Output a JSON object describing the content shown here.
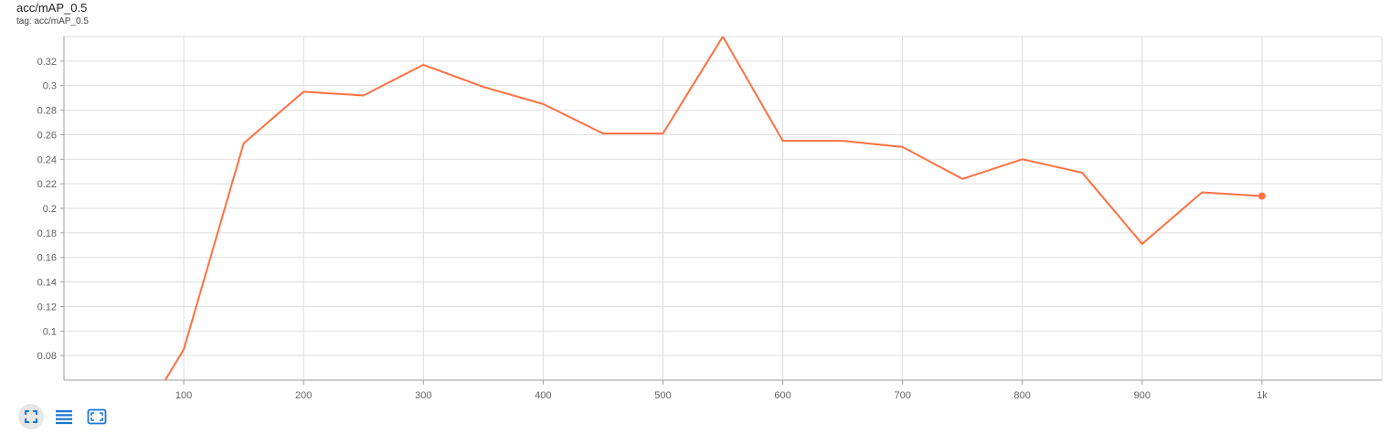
{
  "card": {
    "title": "acc/mAP_0.5",
    "subtitle": "tag: acc/mAP_0.5"
  },
  "toolbar": {
    "buttons": [
      {
        "icon": "fit-domain-icon",
        "active": true
      },
      {
        "icon": "toggle-log-lines-icon",
        "active": false
      },
      {
        "icon": "fullscreen-icon",
        "active": false
      }
    ],
    "accent_color": "#1976d2"
  },
  "chart_data": {
    "type": "line",
    "title": "acc/mAP_0.5",
    "xlabel": "",
    "ylabel": "",
    "xlim": [
      0,
      1100
    ],
    "ylim": [
      0.06,
      0.34
    ],
    "x_ticks": [
      100,
      200,
      300,
      400,
      500,
      600,
      700,
      800,
      900,
      1000
    ],
    "x_tick_labels": [
      "100",
      "200",
      "300",
      "400",
      "500",
      "600",
      "700",
      "800",
      "900",
      "1k"
    ],
    "y_ticks": [
      0.08,
      0.1,
      0.12,
      0.14,
      0.16,
      0.18,
      0.2,
      0.22,
      0.24,
      0.26,
      0.28,
      0.3,
      0.32
    ],
    "y_tick_labels": [
      "0.08",
      "0.1",
      "0.12",
      "0.14",
      "0.16",
      "0.18",
      "0.2",
      "0.22",
      "0.24",
      "0.26",
      "0.28",
      "0.3",
      "0.32"
    ],
    "grid": true,
    "series": [
      {
        "color": "#ff7043",
        "x": [
          50,
          100,
          150,
          200,
          250,
          300,
          350,
          400,
          450,
          500,
          550,
          600,
          650,
          700,
          750,
          800,
          850,
          900,
          950,
          1000
        ],
        "y": [
          0.004,
          0.085,
          0.253,
          0.295,
          0.292,
          0.317,
          0.299,
          0.285,
          0.261,
          0.261,
          0.34,
          0.255,
          0.255,
          0.25,
          0.224,
          0.24,
          0.229,
          0.171,
          0.213,
          0.21
        ]
      }
    ]
  }
}
